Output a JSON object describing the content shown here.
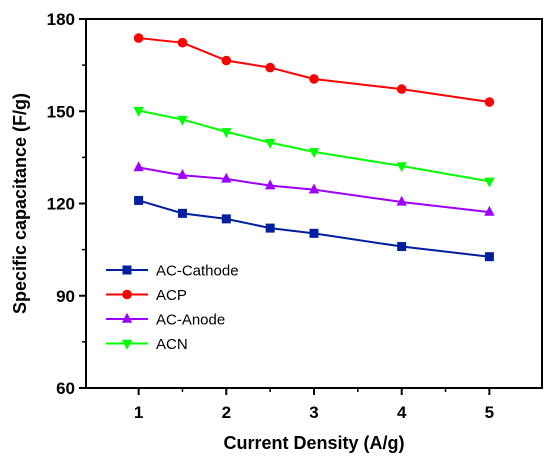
{
  "chart_data": {
    "type": "line",
    "title": "",
    "xlabel": "Current Density (A/g)",
    "ylabel": "Specific capacitance (F/g)",
    "xlim": [
      0.4,
      5.6
    ],
    "ylim": [
      60,
      180
    ],
    "x_ticks": [
      1,
      2,
      3,
      4,
      5
    ],
    "y_ticks": [
      60,
      90,
      120,
      150,
      180
    ],
    "grid": false,
    "legend_position": "bottom-left",
    "x": [
      1,
      1.5,
      2,
      2.5,
      3,
      4,
      5
    ],
    "series": [
      {
        "name": "AC-Cathode",
        "color": "#001f9e",
        "marker": "square",
        "values": [
          121,
          116.8,
          115,
          112,
          110.3,
          106,
          102.7
        ]
      },
      {
        "name": "ACP",
        "color": "#ff0000",
        "marker": "circle",
        "values": [
          173.8,
          172.3,
          166.5,
          164.2,
          160.5,
          157.2,
          153
        ]
      },
      {
        "name": "AC-Anode",
        "color": "#9e00ff",
        "marker": "triangle-up",
        "values": [
          131.7,
          129.2,
          128,
          125.8,
          124.5,
          120.5,
          117.2
        ]
      },
      {
        "name": "ACN",
        "color": "#00ff00",
        "marker": "triangle-down",
        "values": [
          150.2,
          147.3,
          143.3,
          139.8,
          136.8,
          132.2,
          127.2
        ]
      }
    ]
  }
}
